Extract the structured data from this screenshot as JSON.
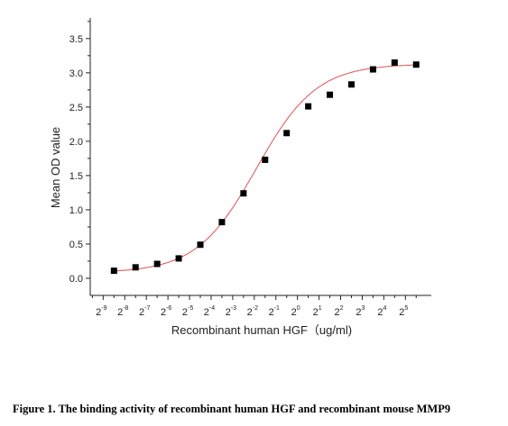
{
  "chart_data": {
    "type": "scatter",
    "xlabel": "Recombinant human  HGF（ug/ml)",
    "ylabel": "Mean OD value",
    "x_ticks": [
      {
        "base": "2",
        "exp": "-9"
      },
      {
        "base": "2",
        "exp": "-8"
      },
      {
        "base": "2",
        "exp": "-7"
      },
      {
        "base": "2",
        "exp": "-6"
      },
      {
        "base": "2",
        "exp": "-5"
      },
      {
        "base": "2",
        "exp": "-4"
      },
      {
        "base": "2",
        "exp": "-3"
      },
      {
        "base": "2",
        "exp": "-2"
      },
      {
        "base": "2",
        "exp": "-1"
      },
      {
        "base": "2",
        "exp": "0"
      },
      {
        "base": "2",
        "exp": "1"
      },
      {
        "base": "2",
        "exp": "2"
      },
      {
        "base": "2",
        "exp": "3"
      },
      {
        "base": "2",
        "exp": "4"
      },
      {
        "base": "2",
        "exp": "5"
      }
    ],
    "xlim": [
      -9.6,
      6.2
    ],
    "ylim": [
      -0.25,
      3.8
    ],
    "y_ticks": [
      "0.0",
      "0.5",
      "1.0",
      "1.5",
      "2.0",
      "2.5",
      "3.0",
      "3.5"
    ],
    "x_scale": "log2",
    "series": [
      {
        "x": [
          -8.5,
          -7.5,
          -6.5,
          -5.5,
          -4.5,
          -3.5,
          -2.5,
          -1.5,
          -0.5,
          0.5,
          1.5,
          2.5,
          3.5,
          4.5,
          5.5
        ],
        "y": [
          0.11,
          0.16,
          0.21,
          0.29,
          0.49,
          0.82,
          1.24,
          1.73,
          2.12,
          2.51,
          2.68,
          2.83,
          3.05,
          3.15,
          3.12
        ]
      }
    ],
    "fit": {
      "model": "4PL",
      "bottom": 0.08,
      "top": 3.13,
      "center_x": -1.9,
      "slope": 0.72,
      "color": "#e06060"
    },
    "marker_color": "#000000",
    "grid": false,
    "legend": "none"
  },
  "caption": "Figure 1. The binding activity of recombinant human HGF and recombinant mouse MMP9"
}
